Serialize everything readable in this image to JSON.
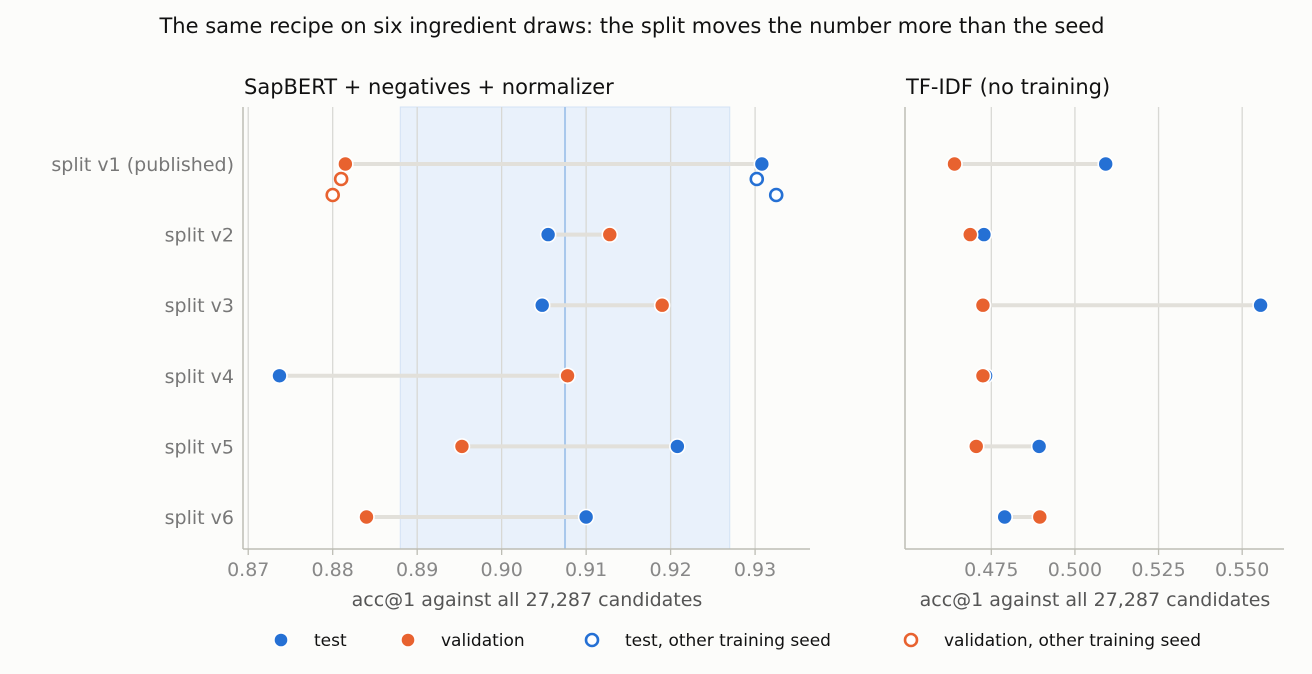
{
  "suptitle": "The same recipe on six ingredient draws: the split moves the number more than the seed",
  "colors": {
    "test": "#2570d4",
    "validation": "#e8622f",
    "connector": "#e2e0da",
    "band": "#e9f1fb",
    "band_line": "#a8c8ec",
    "grid": "#d8d8d4",
    "axis": "#bdbdb4"
  },
  "legend": {
    "test": "test",
    "validation": "validation",
    "test_other_seed": "test, other training seed",
    "validation_other_seed": "validation, other training seed"
  },
  "chart_data": [
    {
      "type": "scatter",
      "title": "SapBERT + negatives + normalizer",
      "xlabel": "acc@1 against all 27,287 candidates",
      "xlim": [
        0.8695,
        0.9365
      ],
      "xticks": [
        "0.87",
        "0.88",
        "0.89",
        "0.90",
        "0.91",
        "0.92",
        "0.93"
      ],
      "categories": [
        "split v1  (published)",
        "split v2",
        "split v3",
        "split v4",
        "split v5",
        "split v6"
      ],
      "mean_line": 0.9075,
      "band": [
        0.888,
        0.927
      ],
      "series": [
        {
          "name": "test",
          "values": [
            0.9308,
            0.9055,
            0.9048,
            0.8737,
            0.9208,
            0.91
          ]
        },
        {
          "name": "validation",
          "values": [
            0.8815,
            0.9128,
            0.919,
            0.9078,
            0.8953,
            0.884
          ]
        },
        {
          "name": "test, other training seed",
          "values": [
            [
              0.9302,
              0.9325
            ],
            [],
            [],
            [],
            [],
            []
          ]
        },
        {
          "name": "validation, other training seed",
          "values": [
            [
              0.881,
              0.88
            ],
            [],
            [],
            [],
            [],
            []
          ]
        }
      ]
    },
    {
      "type": "scatter",
      "title": "TF-IDF (no training)",
      "xlabel": "acc@1 against all 27,287 candidates",
      "xlim": [
        0.4495,
        0.5625
      ],
      "xticks": [
        "0.475",
        "0.500",
        "0.525",
        "0.550"
      ],
      "categories": [
        "split v1  (published)",
        "split v2",
        "split v3",
        "split v4",
        "split v5",
        "split v6"
      ],
      "series": [
        {
          "name": "test",
          "values": [
            0.5092,
            0.4728,
            0.5555,
            0.4733,
            0.4893,
            0.479
          ]
        },
        {
          "name": "validation",
          "values": [
            0.464,
            0.4687,
            0.4725,
            0.4725,
            0.4705,
            0.4895
          ]
        }
      ]
    }
  ]
}
